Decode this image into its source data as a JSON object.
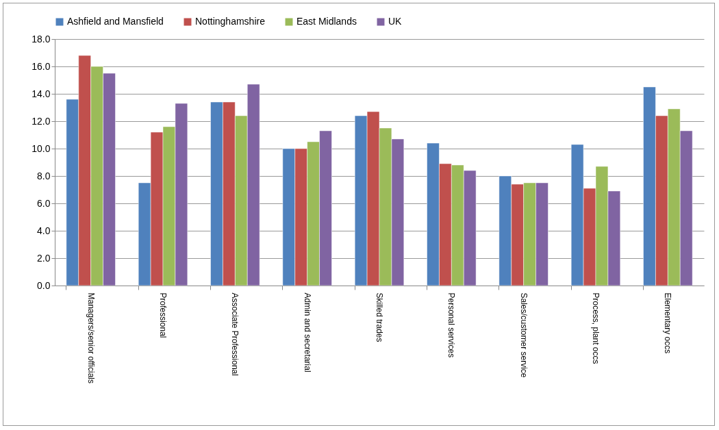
{
  "chart_data": {
    "type": "bar",
    "categories": [
      "Managers/senior officials",
      "Professional",
      "Associate Professional",
      "Admin and secretarial",
      "Skilled trades",
      "Personal services",
      "Sales/customer service",
      "Process, plant occs",
      "Elementary occs"
    ],
    "series": [
      {
        "name": "Ashfield and Mansfield",
        "color": "#4f81bd",
        "values": [
          13.6,
          7.5,
          13.4,
          10.0,
          12.4,
          10.4,
          8.0,
          10.3,
          14.5
        ]
      },
      {
        "name": "Nottinghamshire",
        "color": "#c0504d",
        "values": [
          16.8,
          11.2,
          13.4,
          10.0,
          12.7,
          8.9,
          7.4,
          7.1,
          12.4
        ]
      },
      {
        "name": "East Midlands",
        "color": "#9bbb59",
        "values": [
          16.0,
          11.6,
          12.4,
          10.5,
          11.5,
          8.8,
          7.5,
          8.7,
          12.9
        ]
      },
      {
        "name": "UK",
        "color": "#8064a2",
        "values": [
          15.5,
          13.3,
          14.7,
          11.3,
          10.7,
          8.4,
          7.5,
          6.9,
          11.3
        ]
      }
    ],
    "ylim": [
      0,
      18
    ],
    "yticks": [
      {
        "value": 0,
        "label": "0.0"
      },
      {
        "value": 2,
        "label": "2.0"
      },
      {
        "value": 4,
        "label": "4.0"
      },
      {
        "value": 6,
        "label": "6.0"
      },
      {
        "value": 8,
        "label": "8.0"
      },
      {
        "value": 10,
        "label": "10.0"
      },
      {
        "value": 12,
        "label": "12.0"
      },
      {
        "value": 14,
        "label": "14.0"
      },
      {
        "value": 16,
        "label": "16.0"
      },
      {
        "value": 18,
        "label": "18.0"
      }
    ],
    "grid": "y",
    "legend": "top"
  }
}
